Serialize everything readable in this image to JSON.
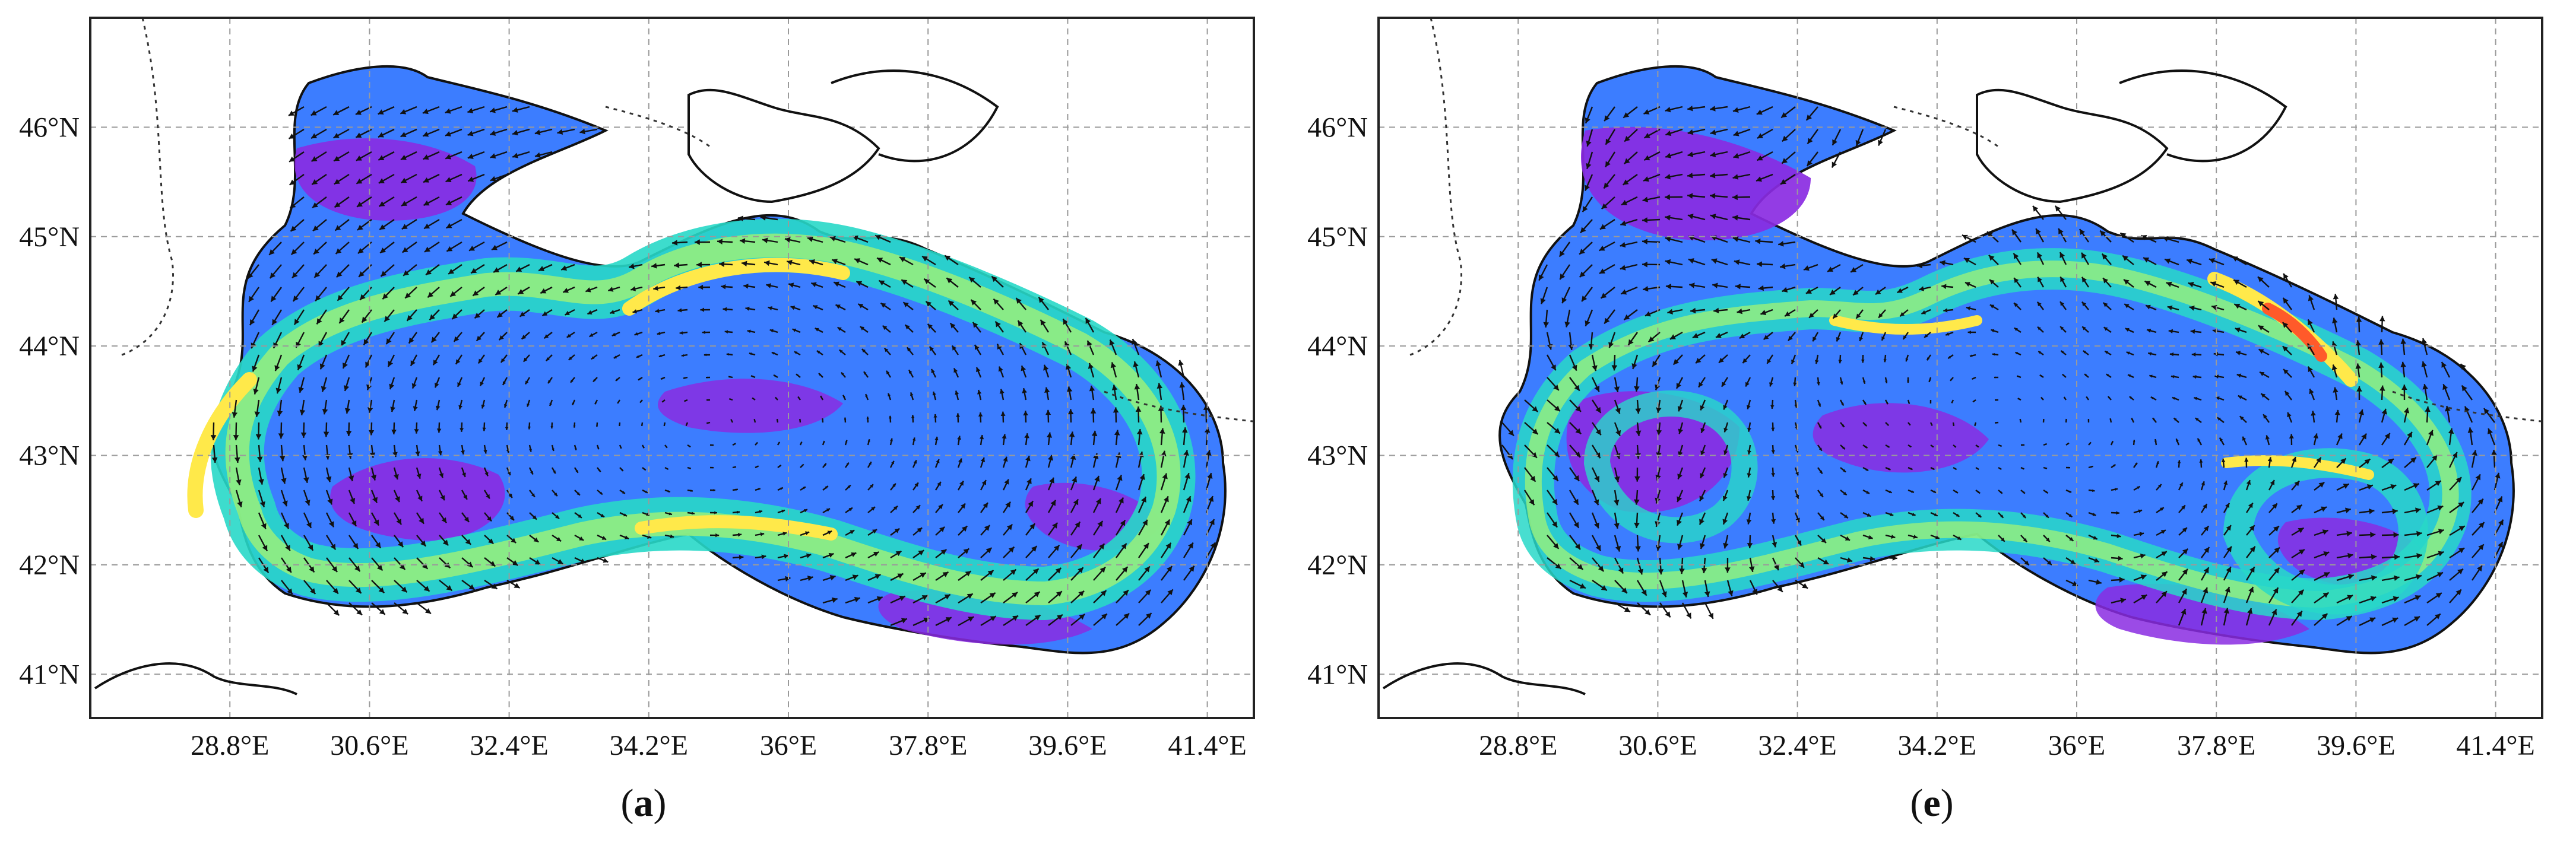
{
  "panels": [
    {
      "id": "a",
      "caption_open": "(",
      "caption_letter": "a",
      "caption_close": ")",
      "x_ticks": [
        {
          "lon": 28.8,
          "label": "28.8°E"
        },
        {
          "lon": 30.6,
          "label": "30.6°E"
        },
        {
          "lon": 32.4,
          "label": "32.4°E"
        },
        {
          "lon": 34.2,
          "label": "34.2°E"
        },
        {
          "lon": 36.0,
          "label": "36°E"
        },
        {
          "lon": 37.8,
          "label": "37.8°E"
        },
        {
          "lon": 39.6,
          "label": "39.6°E"
        },
        {
          "lon": 41.4,
          "label": "41.4°E"
        }
      ],
      "y_ticks": [
        {
          "lat": 46,
          "label": "46°N"
        },
        {
          "lat": 45,
          "label": "45°N"
        },
        {
          "lat": 44,
          "label": "44°N"
        },
        {
          "lat": 43,
          "label": "43°N"
        },
        {
          "lat": 42,
          "label": "42°N"
        },
        {
          "lat": 41,
          "label": "41°N"
        }
      ]
    },
    {
      "id": "e",
      "caption_open": "(",
      "caption_letter": "e",
      "caption_close": ")",
      "x_ticks": [
        {
          "lon": 28.8,
          "label": "28.8°E"
        },
        {
          "lon": 30.6,
          "label": "30.6°E"
        },
        {
          "lon": 32.4,
          "label": "32.4°E"
        },
        {
          "lon": 34.2,
          "label": "34.2°E"
        },
        {
          "lon": 36.0,
          "label": "36°E"
        },
        {
          "lon": 37.8,
          "label": "37.8°E"
        },
        {
          "lon": 39.6,
          "label": "39.6°E"
        },
        {
          "lon": 41.4,
          "label": "41.4°E"
        }
      ],
      "y_ticks": [
        {
          "lat": 46,
          "label": "46°N"
        },
        {
          "lat": 45,
          "label": "45°N"
        },
        {
          "lat": 44,
          "label": "44°N"
        },
        {
          "lat": 43,
          "label": "43°N"
        },
        {
          "lat": 42,
          "label": "42°N"
        },
        {
          "lat": 41,
          "label": "41°N"
        }
      ]
    }
  ],
  "colors": {
    "low": "#8a2be2",
    "mid_low": "#3c7dff",
    "mid": "#28d8c8",
    "mid_high": "#9af07a",
    "high": "#ffe94a",
    "peak": "#ff5a2a",
    "grid": "#9a9a9a",
    "coast": "#111111"
  },
  "map": {
    "lon_range": [
      27.0,
      42.0
    ],
    "lat_range": [
      40.6,
      47.0
    ]
  }
}
